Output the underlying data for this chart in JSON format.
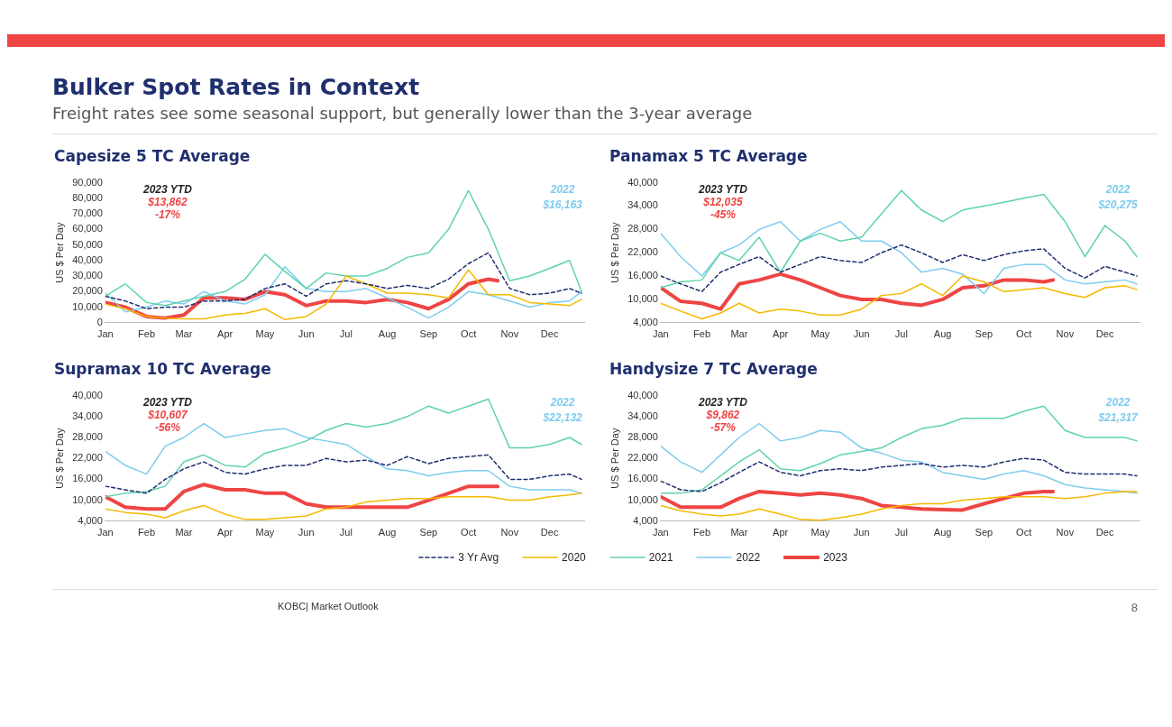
{
  "chart_data": [
    {
      "type": "other",
      "title": "Bulker Spot Rates in Context",
      "subtitle": "Freight rates see some seasonal support, but generally lower than the 3-year average",
      "annotations": [
        "KOBC| Market Outlook",
        "8"
      ]
    },
    {
      "type": "line",
      "title": "Capesize 5 TC Average",
      "ylabel": "US $ Per Day",
      "ylim": [
        0,
        90000
      ],
      "yticks": [
        0,
        {
          "value": 10000,
          "label": "10,000"
        },
        {
          "value": 20000,
          "label": "20,000"
        },
        {
          "value": 30000,
          "label": "30,000"
        },
        {
          "value": 40000,
          "label": "40,000"
        },
        {
          "value": 50000,
          "label": "50,000"
        },
        {
          "value": 60000,
          "label": "60,000"
        },
        {
          "value": 70000,
          "label": "70,000"
        },
        {
          "value": 80000,
          "label": "80,000"
        },
        {
          "value": 90000,
          "label": "90,000"
        }
      ],
      "xlim": [
        "--01-01",
        "--12-27"
      ],
      "xticks": [
        {
          "value": "--01-01",
          "label": "Jan"
        },
        {
          "value": "--02-01",
          "label": "Feb"
        },
        {
          "value": "--03-01",
          "label": "Mar"
        },
        {
          "value": "--04-01",
          "label": "Apr"
        },
        {
          "value": "--05-01",
          "label": "May"
        },
        {
          "value": "--06-01",
          "label": "Jun"
        },
        {
          "value": "--07-01",
          "label": "Jul"
        },
        {
          "value": "--08-01",
          "label": "Aug"
        },
        {
          "value": "--09-01",
          "label": "Sep"
        },
        {
          "value": "--10-01",
          "label": "Oct"
        },
        {
          "value": "--11-01",
          "label": "Nov"
        },
        {
          "value": "--12-01",
          "label": "Dec"
        }
      ],
      "grid": false,
      "marker": "none",
      "x": [
        "--01-01",
        "--01-16",
        "--02-01",
        "--02-15",
        "--03-01",
        "--03-16",
        "--04-01",
        "--04-16",
        "--05-01",
        "--05-16",
        "--06-01",
        "--06-16",
        "--07-01",
        "--07-16",
        "--08-01",
        "--08-16",
        "--09-01",
        "--09-16",
        "--10-01",
        "--10-16",
        "--11-01",
        "--11-16",
        "--12-01",
        "--12-16",
        "--12-25"
      ],
      "annotations": [
        "2023 YTD",
        "$13,862",
        "-17%",
        "2022",
        "$16,163"
      ],
      "series": [
        {
          "color": "#1f2f6e",
          "line_style": "dashed",
          "values": [
            17000,
            14000,
            9000,
            10000,
            10000,
            14000,
            14000,
            15000,
            22000,
            25000,
            17000,
            25000,
            27000,
            25000,
            22000,
            24000,
            22000,
            28000,
            38000,
            45000,
            22000,
            18000,
            19000,
            22000,
            19000
          ]
        },
        {
          "color": "#f5b800",
          "values": [
            12000,
            9000,
            4000,
            3000,
            2500,
            2500,
            5000,
            6000,
            9000,
            2000,
            4000,
            12000,
            30000,
            25000,
            19000,
            19000,
            18000,
            16000,
            34000,
            18000,
            18000,
            13000,
            12000,
            11000,
            15000
          ]
        },
        {
          "color": "#5fd3ad",
          "values": [
            17000,
            25000,
            13000,
            11000,
            14000,
            17000,
            20000,
            28000,
            44000,
            33000,
            22000,
            32000,
            30000,
            30000,
            35000,
            42000,
            45000,
            60000,
            85000,
            60000,
            27000,
            30000,
            35000,
            40000,
            20000
          ]
        },
        {
          "color": "#7dccee",
          "values": [
            19000,
            7000,
            10000,
            14000,
            12000,
            20000,
            14000,
            12000,
            18000,
            36000,
            22000,
            20000,
            20000,
            22000,
            16000,
            10000,
            3000,
            10000,
            20000,
            18000,
            14000,
            10000,
            13000,
            14000,
            20000
          ]
        },
        {
          "color": "#ef4444",
          "x": [
            "--01-01",
            "--01-16",
            "--02-01",
            "--02-15",
            "--03-01",
            "--03-16",
            "--04-01",
            "--04-16",
            "--05-01",
            "--05-16",
            "--06-01",
            "--06-16",
            "--07-01",
            "--07-16",
            "--08-01",
            "--08-16",
            "--09-01",
            "--09-16",
            "--10-01",
            "--10-16",
            "--10-23"
          ],
          "values": [
            13000,
            10000,
            4000,
            3000,
            5000,
            16000,
            16000,
            15000,
            20000,
            18000,
            11000,
            14000,
            14000,
            13000,
            15000,
            13000,
            9000,
            15000,
            25000,
            28000,
            27000
          ]
        }
      ]
    },
    {
      "type": "line",
      "title": "Panamax 5 TC Average",
      "ylabel": "US $ Per Day",
      "ylim": [
        4000,
        40000
      ],
      "yticks": [
        {
          "value": 4000,
          "label": "4,000"
        },
        {
          "value": 10000,
          "label": "10,000"
        },
        {
          "value": 16000,
          "label": "16,000"
        },
        {
          "value": 22000,
          "label": "22,000"
        },
        {
          "value": 28000,
          "label": "28,000"
        },
        {
          "value": 34000,
          "label": "34,000"
        },
        {
          "value": 40000,
          "label": "40,000"
        }
      ],
      "xlim": [
        "--01-01",
        "--12-27"
      ],
      "xticks": [
        {
          "value": "--01-01",
          "label": "Jan"
        },
        {
          "value": "--02-01",
          "label": "Feb"
        },
        {
          "value": "--03-01",
          "label": "Mar"
        },
        {
          "value": "--04-01",
          "label": "Apr"
        },
        {
          "value": "--05-01",
          "label": "May"
        },
        {
          "value": "--06-01",
          "label": "Jun"
        },
        {
          "value": "--07-01",
          "label": "Jul"
        },
        {
          "value": "--08-01",
          "label": "Aug"
        },
        {
          "value": "--09-01",
          "label": "Sep"
        },
        {
          "value": "--10-01",
          "label": "Oct"
        },
        {
          "value": "--11-01",
          "label": "Nov"
        },
        {
          "value": "--12-01",
          "label": "Dec"
        }
      ],
      "grid": false,
      "marker": "none",
      "x": [
        "--01-01",
        "--01-16",
        "--02-01",
        "--02-15",
        "--03-01",
        "--03-16",
        "--04-01",
        "--04-16",
        "--05-01",
        "--05-16",
        "--06-01",
        "--06-16",
        "--07-01",
        "--07-16",
        "--08-01",
        "--08-16",
        "--09-01",
        "--09-16",
        "--10-01",
        "--10-16",
        "--11-01",
        "--11-16",
        "--12-01",
        "--12-16",
        "--12-25"
      ],
      "annotations": [
        "2023 YTD",
        "$12,035",
        "-45%",
        "2022",
        "$20,275"
      ],
      "series": [
        {
          "color": "#1f2f6e",
          "line_style": "dashed",
          "values": [
            16000,
            14000,
            12000,
            17000,
            19000,
            21000,
            17000,
            19000,
            21000,
            20000,
            19500,
            22000,
            24000,
            22000,
            19500,
            21500,
            20000,
            21500,
            22500,
            23000,
            18000,
            15500,
            18500,
            17000,
            16000
          ]
        },
        {
          "color": "#f5b800",
          "values": [
            9000,
            7000,
            5000,
            6500,
            9000,
            6500,
            7500,
            7000,
            6000,
            6000,
            7500,
            11000,
            11500,
            14000,
            11000,
            16000,
            14500,
            12000,
            12500,
            13000,
            11500,
            10500,
            13000,
            13500,
            12500
          ]
        },
        {
          "color": "#5fd3ad",
          "values": [
            13000,
            14500,
            15000,
            22000,
            20000,
            26000,
            17000,
            25000,
            27000,
            25000,
            26000,
            32000,
            38000,
            33000,
            30000,
            33000,
            34000,
            35000,
            36000,
            37000,
            30000,
            21000,
            29000,
            25000,
            21000
          ]
        },
        {
          "color": "#7dccee",
          "values": [
            27000,
            21000,
            16000,
            22000,
            24000,
            28000,
            30000,
            25000,
            28000,
            30000,
            25000,
            25000,
            22000,
            17000,
            18000,
            16500,
            11500,
            18000,
            19000,
            19000,
            15000,
            14000,
            14500,
            15000,
            14000
          ]
        },
        {
          "color": "#ef4444",
          "x": [
            "--01-01",
            "--01-16",
            "--02-01",
            "--02-15",
            "--03-01",
            "--03-16",
            "--04-01",
            "--04-16",
            "--05-01",
            "--05-16",
            "--06-01",
            "--06-16",
            "--07-01",
            "--07-16",
            "--08-01",
            "--08-16",
            "--09-01",
            "--09-16",
            "--10-01",
            "--10-16",
            "--10-23"
          ],
          "values": [
            13000,
            9500,
            9000,
            7500,
            14000,
            15000,
            16500,
            15000,
            13000,
            11000,
            10000,
            10000,
            9000,
            8500,
            10000,
            13000,
            13500,
            15000,
            15000,
            14500,
            15000
          ]
        }
      ]
    },
    {
      "type": "line",
      "title": "Supramax 10 TC Average",
      "ylabel": "US $ Per Day",
      "ylim": [
        4000,
        40000
      ],
      "yticks": [
        {
          "value": 4000,
          "label": "4,000"
        },
        {
          "value": 10000,
          "label": "10,000"
        },
        {
          "value": 16000,
          "label": "16,000"
        },
        {
          "value": 22000,
          "label": "22,000"
        },
        {
          "value": 28000,
          "label": "28,000"
        },
        {
          "value": 34000,
          "label": "34,000"
        },
        {
          "value": 40000,
          "label": "40,000"
        }
      ],
      "xlim": [
        "--01-01",
        "--12-27"
      ],
      "xticks": [
        {
          "value": "--01-01",
          "label": "Jan"
        },
        {
          "value": "--02-01",
          "label": "Feb"
        },
        {
          "value": "--03-01",
          "label": "Mar"
        },
        {
          "value": "--04-01",
          "label": "Apr"
        },
        {
          "value": "--05-01",
          "label": "May"
        },
        {
          "value": "--06-01",
          "label": "Jun"
        },
        {
          "value": "--07-01",
          "label": "Jul"
        },
        {
          "value": "--08-01",
          "label": "Aug"
        },
        {
          "value": "--09-01",
          "label": "Sep"
        },
        {
          "value": "--10-01",
          "label": "Oct"
        },
        {
          "value": "--11-01",
          "label": "Nov"
        },
        {
          "value": "--12-01",
          "label": "Dec"
        }
      ],
      "grid": false,
      "marker": "none",
      "x": [
        "--01-01",
        "--01-16",
        "--02-01",
        "--02-15",
        "--03-01",
        "--03-16",
        "--04-01",
        "--04-16",
        "--05-01",
        "--05-16",
        "--06-01",
        "--06-16",
        "--07-01",
        "--07-16",
        "--08-01",
        "--08-16",
        "--09-01",
        "--09-16",
        "--10-01",
        "--10-16",
        "--11-01",
        "--11-16",
        "--12-01",
        "--12-16",
        "--12-25"
      ],
      "annotations": [
        "2023 YTD",
        "$10,607",
        "-56%",
        "2022",
        "$22,132"
      ],
      "series": [
        {
          "color": "#1f2f6e",
          "line_style": "dashed",
          "values": [
            14000,
            13000,
            12000,
            16000,
            19000,
            21000,
            18000,
            17500,
            19000,
            20000,
            20000,
            22000,
            21000,
            21500,
            20000,
            22500,
            20500,
            22000,
            22500,
            23000,
            16000,
            16000,
            17000,
            17500,
            16000
          ]
        },
        {
          "color": "#f5b800",
          "values": [
            7500,
            6500,
            6000,
            5000,
            7000,
            8500,
            6000,
            4500,
            4500,
            5000,
            5500,
            7500,
            8000,
            9500,
            10000,
            10500,
            10500,
            11000,
            11000,
            11000,
            10000,
            10000,
            11000,
            11500,
            12000
          ]
        },
        {
          "color": "#5fd3ad",
          "values": [
            11000,
            12000,
            12500,
            14000,
            21000,
            23000,
            20000,
            19500,
            23500,
            25000,
            27000,
            30000,
            32000,
            31000,
            32000,
            34000,
            37000,
            35000,
            37000,
            39000,
            25000,
            25000,
            26000,
            28000,
            26000
          ]
        },
        {
          "color": "#7dccee",
          "values": [
            24000,
            20000,
            17500,
            25500,
            28000,
            32000,
            28000,
            29000,
            30000,
            30500,
            28000,
            27000,
            26000,
            22500,
            19000,
            18500,
            17000,
            18000,
            18500,
            18500,
            14000,
            13000,
            13000,
            13000,
            12000
          ]
        },
        {
          "color": "#ef4444",
          "x": [
            "--01-01",
            "--01-16",
            "--02-01",
            "--02-15",
            "--03-01",
            "--03-16",
            "--04-01",
            "--04-16",
            "--05-01",
            "--05-16",
            "--06-01",
            "--06-16",
            "--07-01",
            "--07-16",
            "--08-01",
            "--08-16",
            "--09-01",
            "--09-16",
            "--10-01",
            "--10-16",
            "--10-23"
          ],
          "values": [
            11000,
            8000,
            7500,
            7500,
            12500,
            14500,
            13000,
            13000,
            12000,
            12000,
            9000,
            8000,
            8000,
            8000,
            8000,
            8000,
            10000,
            12000,
            14000,
            14000,
            14000
          ]
        }
      ]
    },
    {
      "type": "line",
      "title": "Handysize 7 TC Average",
      "ylabel": "US $ Per Day",
      "ylim": [
        4000,
        40000
      ],
      "yticks": [
        {
          "value": 4000,
          "label": "4,000"
        },
        {
          "value": 10000,
          "label": "10,000"
        },
        {
          "value": 16000,
          "label": "16,000"
        },
        {
          "value": 22000,
          "label": "22,000"
        },
        {
          "value": 28000,
          "label": "28,000"
        },
        {
          "value": 34000,
          "label": "34,000"
        },
        {
          "value": 40000,
          "label": "40,000"
        }
      ],
      "xlim": [
        "--01-01",
        "--12-27"
      ],
      "xticks": [
        {
          "value": "--01-01",
          "label": "Jan"
        },
        {
          "value": "--02-01",
          "label": "Feb"
        },
        {
          "value": "--03-01",
          "label": "Mar"
        },
        {
          "value": "--04-01",
          "label": "Apr"
        },
        {
          "value": "--05-01",
          "label": "May"
        },
        {
          "value": "--06-01",
          "label": "Jun"
        },
        {
          "value": "--07-01",
          "label": "Jul"
        },
        {
          "value": "--08-01",
          "label": "Aug"
        },
        {
          "value": "--09-01",
          "label": "Sep"
        },
        {
          "value": "--10-01",
          "label": "Oct"
        },
        {
          "value": "--11-01",
          "label": "Nov"
        },
        {
          "value": "--12-01",
          "label": "Dec"
        }
      ],
      "grid": false,
      "marker": "none",
      "legend": "bottom",
      "x": [
        "--01-01",
        "--01-16",
        "--02-01",
        "--02-15",
        "--03-01",
        "--03-16",
        "--04-01",
        "--04-16",
        "--05-01",
        "--05-16",
        "--06-01",
        "--06-16",
        "--07-01",
        "--07-16",
        "--08-01",
        "--08-16",
        "--09-01",
        "--09-16",
        "--10-01",
        "--10-16",
        "--11-01",
        "--11-16",
        "--12-01",
        "--12-16",
        "--12-25"
      ],
      "annotations": [
        "2023 YTD",
        "$9,862",
        "-57%",
        "2022",
        "$21,317"
      ],
      "series": [
        {
          "name": "3 Yr Avg",
          "color": "#1f2f6e",
          "line_style": "dashed",
          "values": [
            15500,
            13000,
            12500,
            15000,
            18000,
            21000,
            18000,
            17000,
            18500,
            19000,
            18500,
            19500,
            20000,
            20500,
            19500,
            20000,
            19500,
            21000,
            22000,
            21500,
            18000,
            17500,
            17500,
            17500,
            17000
          ]
        },
        {
          "name": "2020",
          "color": "#f5b800",
          "values": [
            8500,
            7000,
            6000,
            5500,
            6000,
            7500,
            6000,
            4500,
            4300,
            5000,
            6000,
            7500,
            8500,
            9000,
            9000,
            10000,
            10500,
            11000,
            11000,
            11000,
            10500,
            11000,
            12000,
            12500,
            12500
          ]
        },
        {
          "name": "2021",
          "color": "#5fd3ad",
          "values": [
            12000,
            12000,
            13000,
            17000,
            21000,
            24500,
            19000,
            18500,
            20500,
            23000,
            24000,
            25000,
            28000,
            30500,
            31500,
            33500,
            33500,
            33500,
            35500,
            37000,
            30000,
            28000,
            28000,
            28000,
            27000
          ]
        },
        {
          "name": "2022",
          "color": "#7dccee",
          "values": [
            25500,
            21000,
            18000,
            23000,
            28000,
            32000,
            27000,
            28000,
            30000,
            29500,
            25000,
            23500,
            21500,
            21000,
            18000,
            17000,
            16000,
            17500,
            18500,
            17000,
            14500,
            13500,
            13000,
            12500,
            12000
          ]
        },
        {
          "name": "2023",
          "color": "#ef4444",
          "x": [
            "--01-01",
            "--01-16",
            "--02-01",
            "--02-15",
            "--03-01",
            "--03-16",
            "--04-01",
            "--04-16",
            "--05-01",
            "--05-16",
            "--06-01",
            "--06-16",
            "--07-01",
            "--07-16",
            "--08-01",
            "--08-16",
            "--09-01",
            "--09-16",
            "--10-01",
            "--10-16",
            "--10-23"
          ],
          "values": [
            11000,
            8000,
            8000,
            8000,
            10500,
            12500,
            12000,
            11500,
            12000,
            11500,
            10500,
            8500,
            8000,
            7500,
            7300,
            7200,
            9000,
            10500,
            12000,
            12500,
            12500
          ]
        }
      ]
    }
  ]
}
